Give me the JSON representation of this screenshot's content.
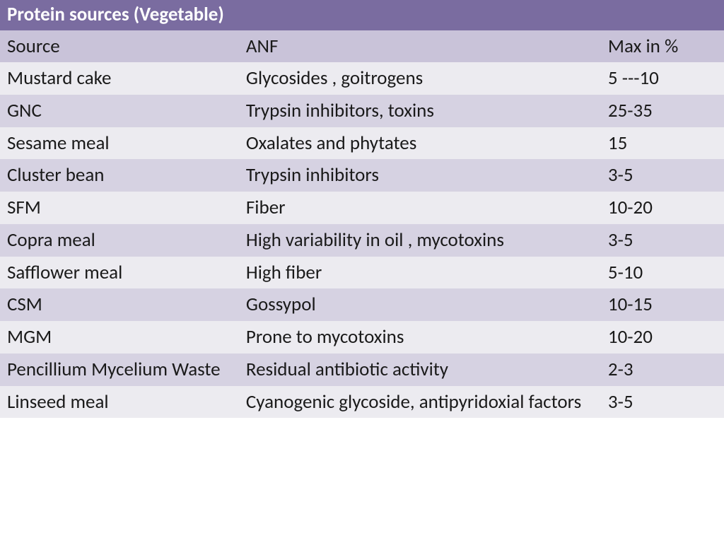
{
  "table": {
    "title": "Protein sources  (Vegetable)",
    "colors": {
      "title_bg": "#7a6ca0",
      "title_text": "#ffffff",
      "header_bg": "#c9c3d9",
      "row_odd_bg": "#ecebf0",
      "row_even_bg": "#d6d2e2",
      "text": "#1a1a1a"
    },
    "font_size_pt": 20,
    "columns": [
      "Source",
      "ANF",
      "Max in %"
    ],
    "column_widths_pct": [
      33,
      50,
      17
    ],
    "rows": [
      {
        "source": "Mustard cake",
        "anf": "Glycosides , goitrogens",
        "max": "5 ---10"
      },
      {
        "source": "GNC",
        "anf": "Trypsin inhibitors, toxins",
        "max": "25-35"
      },
      {
        "source": "Sesame meal",
        "anf": "Oxalates and phytates",
        "max": "15"
      },
      {
        "source": "Cluster bean",
        "anf": "Trypsin inhibitors",
        "max": "3-5"
      },
      {
        "source": "SFM",
        "anf": "Fiber",
        "max": "10-20"
      },
      {
        "source": "Copra meal",
        "anf": "High variability in oil , mycotoxins",
        "max": "3-5"
      },
      {
        "source": "Safflower meal",
        "anf": "High fiber",
        "max": "5-10"
      },
      {
        "source": "CSM",
        "anf": "Gossypol",
        "max": "10-15"
      },
      {
        "source": "MGM",
        "anf": "Prone to mycotoxins",
        "max": "10-20"
      },
      {
        "source": "Pencillium Mycelium Waste",
        "anf": "Residual antibiotic activity",
        "max": "2-3"
      },
      {
        "source": "Linseed meal",
        "anf": "Cyanogenic glycoside, antipyridoxial factors",
        "max": "3-5"
      }
    ]
  }
}
